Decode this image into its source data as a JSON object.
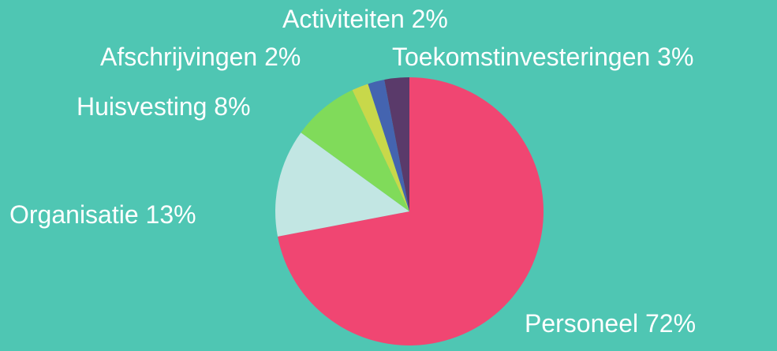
{
  "chart_data": {
    "type": "pie",
    "categories": [
      "Personeel",
      "Organisatie",
      "Huisvesting",
      "Afschrijvingen",
      "Activiteiten",
      "Toekomstinvesteringen"
    ],
    "values": [
      72,
      13,
      8,
      2,
      2,
      3
    ],
    "value_labels": [
      "72%",
      "13%",
      "8%",
      "2%",
      "2%",
      "3%"
    ],
    "colors": [
      "#f04672",
      "#c2e6e3",
      "#80db5a",
      "#c8d84a",
      "#4464b0",
      "#5a3a6a"
    ]
  }
}
